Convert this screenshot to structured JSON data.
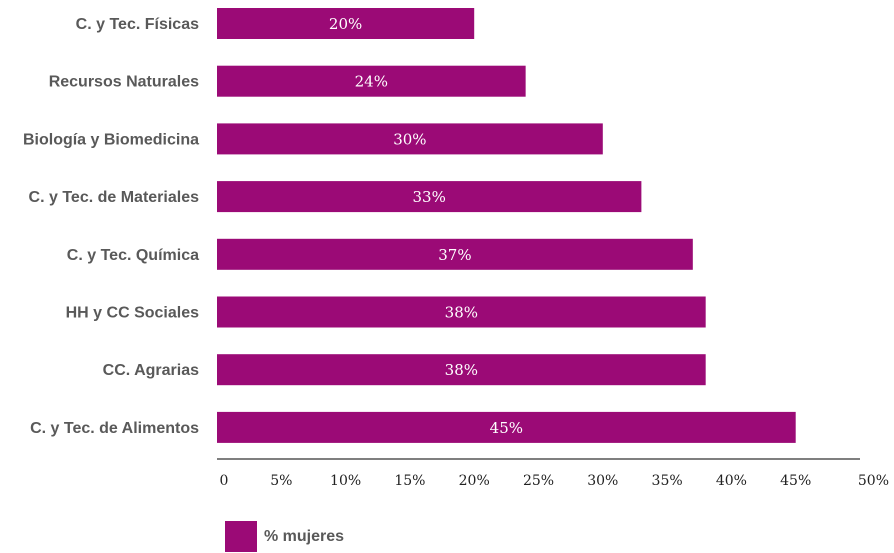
{
  "chart_data": {
    "type": "bar",
    "orientation": "horizontal",
    "categories": [
      "C. y Tec. Físicas",
      "Recursos Naturales",
      "Biología y Biomedicina",
      "C. y Tec. de Materiales",
      "C. y Tec. Química",
      "HH y CC Sociales",
      "CC. Agrarias",
      "C. y Tec. de Alimentos"
    ],
    "series": [
      {
        "name": "% mujeres",
        "values": [
          20,
          24,
          30,
          33,
          37,
          38,
          38,
          45
        ],
        "labels": [
          "20%",
          "24%",
          "30%",
          "33%",
          "37%",
          "38%",
          "38%",
          "45%"
        ]
      }
    ],
    "xlim": [
      0,
      50
    ],
    "xticks": [
      "0",
      "5%",
      "10%",
      "15%",
      "20%",
      "25%",
      "30%",
      "35%",
      "40%",
      "45%",
      "50%"
    ],
    "title": "",
    "xlabel": "",
    "ylabel": "",
    "grid": false,
    "legend_position": "bottom-left",
    "bar_color": "#9b0a76"
  }
}
